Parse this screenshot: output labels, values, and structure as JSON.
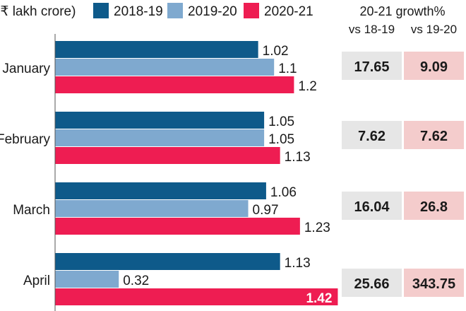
{
  "chart_data": {
    "type": "bar",
    "orientation": "horizontal",
    "unit_label": "(₹ lakh crore)",
    "categories": [
      "January",
      "February",
      "March",
      "April"
    ],
    "series": [
      {
        "name": "2018-19",
        "color": "#0e5a8a",
        "values": [
          1.02,
          1.05,
          1.06,
          1.13
        ]
      },
      {
        "name": "2019-20",
        "color": "#7fa9cf",
        "values": [
          1.1,
          1.05,
          0.97,
          0.32
        ]
      },
      {
        "name": "2020-21",
        "color": "#ee1d52",
        "values": [
          1.2,
          1.13,
          1.23,
          1.42
        ]
      }
    ],
    "value_labels": [
      [
        "1.02",
        "1.1",
        "1.2"
      ],
      [
        "1.05",
        "1.05",
        "1.13"
      ],
      [
        "1.06",
        "0.97",
        "1.23"
      ],
      [
        "1.13",
        "0.32",
        "1.42"
      ]
    ],
    "highlighted_value": {
      "category": "April",
      "series": "2020-21"
    },
    "xlim": [
      0,
      1.4
    ],
    "legend_position": "top",
    "grid": false
  },
  "growth_table": {
    "title": "20-21 growth%",
    "columns": [
      "vs 18-19",
      "vs 19-20"
    ],
    "column_colors": [
      "#e6e6e6",
      "#f4cccc"
    ],
    "rows": [
      [
        "17.65",
        "9.09"
      ],
      [
        "7.62",
        "7.62"
      ],
      [
        "16.04",
        "26.8"
      ],
      [
        "25.66",
        "343.75"
      ]
    ]
  }
}
